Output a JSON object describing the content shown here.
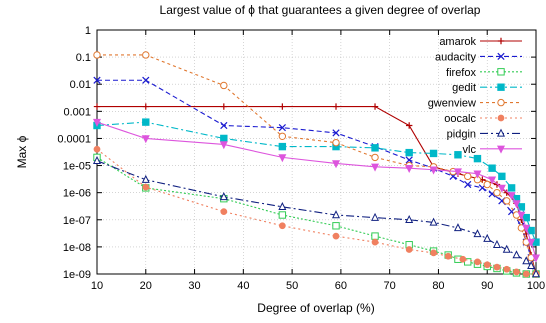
{
  "chart_data": {
    "type": "line",
    "title": "Largest value of ϕ that guarantees a given degree of overlap",
    "xlabel": "Degree of overlap (%)",
    "ylabel": "Max ϕ",
    "xlim": [
      10,
      100
    ],
    "ylim": [
      1e-09,
      1
    ],
    "y_scale": "log",
    "grid": true,
    "legend_position": "top-right",
    "x_ticks": [
      10,
      20,
      30,
      40,
      50,
      60,
      70,
      80,
      90,
      100
    ],
    "x_tick_labels": [
      "10",
      "20",
      "30",
      "40",
      "50",
      "60",
      "70",
      "80",
      "90",
      "100"
    ],
    "y_ticks": [
      1,
      0.1,
      0.01,
      0.001,
      0.0001,
      1e-05,
      1e-06,
      1e-07,
      1e-08,
      1e-09
    ],
    "y_tick_labels": [
      "1",
      "0.1",
      "0.01",
      "0.001",
      "0.0001",
      "1e-05",
      "1e-06",
      "1e-07",
      "1e-08",
      "1e-09"
    ],
    "series": [
      {
        "name": "amarok",
        "color": "#b00000",
        "marker": "plus",
        "dash": "",
        "points": [
          [
            10,
            0.0015
          ],
          [
            20,
            0.0015
          ],
          [
            36,
            0.0015
          ],
          [
            48,
            0.0015
          ],
          [
            59,
            0.0015
          ],
          [
            67,
            0.0015
          ],
          [
            74,
            0.0003
          ],
          [
            79,
            9e-06
          ],
          [
            84,
            5e-06
          ],
          [
            89,
            3e-06
          ],
          [
            92,
            2e-06
          ],
          [
            94,
            1e-06
          ],
          [
            96,
            4e-07
          ],
          [
            97,
            1e-07
          ],
          [
            98,
            3e-08
          ],
          [
            99,
            5e-09
          ],
          [
            100,
            1e-09
          ]
        ]
      },
      {
        "name": "audacity",
        "color": "#1a1ad0",
        "marker": "x",
        "dash": "5,3",
        "points": [
          [
            10,
            0.014
          ],
          [
            20,
            0.014
          ],
          [
            36,
            0.0003
          ],
          [
            48,
            0.00025
          ],
          [
            59,
            0.00016
          ],
          [
            67,
            5e-05
          ],
          [
            74,
            1.6e-05
          ],
          [
            79,
            8e-06
          ],
          [
            83,
            4e-06
          ],
          [
            86,
            2e-06
          ],
          [
            89,
            1.5e-06
          ],
          [
            91,
            9e-07
          ],
          [
            93,
            5e-07
          ],
          [
            95,
            2e-07
          ],
          [
            97,
            6e-08
          ],
          [
            98,
            1.5e-08
          ],
          [
            99,
            4e-09
          ],
          [
            100,
            1e-09
          ]
        ]
      },
      {
        "name": "firefox",
        "color": "#33cc55",
        "marker": "square-open",
        "dash": "2,2",
        "points": [
          [
            10,
            2e-05
          ],
          [
            20,
            1.5e-06
          ],
          [
            36,
            6e-07
          ],
          [
            48,
            1.5e-07
          ],
          [
            59,
            6e-08
          ],
          [
            67,
            2.5e-08
          ],
          [
            74,
            1.2e-08
          ],
          [
            79,
            7e-09
          ],
          [
            82,
            5e-09
          ],
          [
            84,
            3.5e-09
          ],
          [
            86,
            2.8e-09
          ],
          [
            88,
            2.3e-09
          ],
          [
            90,
            1.9e-09
          ],
          [
            92,
            1.6e-09
          ],
          [
            94,
            1.3e-09
          ],
          [
            96,
            1.1e-09
          ],
          [
            98,
            1e-09
          ],
          [
            100,
            1e-09
          ]
        ]
      },
      {
        "name": "gedit",
        "color": "#00b8c8",
        "marker": "square-filled",
        "dash": "7,3,2,3",
        "points": [
          [
            10,
            0.0003
          ],
          [
            20,
            0.0004
          ],
          [
            36,
            0.0001
          ],
          [
            48,
            5e-05
          ],
          [
            59,
            5e-05
          ],
          [
            67,
            4.5e-05
          ],
          [
            74,
            3e-05
          ],
          [
            79,
            2.8e-05
          ],
          [
            84,
            2.5e-05
          ],
          [
            88,
            1.8e-05
          ],
          [
            91,
            8e-06
          ],
          [
            93,
            4e-06
          ],
          [
            95,
            1.5e-06
          ],
          [
            96,
            6e-07
          ],
          [
            97,
            3e-07
          ],
          [
            98,
            1.2e-07
          ],
          [
            99,
            4e-08
          ],
          [
            100,
            1.5e-08
          ]
        ]
      },
      {
        "name": "gwenview",
        "color": "#e07830",
        "marker": "circle-open",
        "dash": "3,3",
        "points": [
          [
            10,
            0.12
          ],
          [
            20,
            0.12
          ],
          [
            36,
            0.009
          ],
          [
            48,
            0.00012
          ],
          [
            59,
            7e-05
          ],
          [
            67,
            2e-05
          ],
          [
            74,
            1e-05
          ],
          [
            79,
            9e-06
          ],
          [
            83,
            6e-06
          ],
          [
            86,
            4e-06
          ],
          [
            88,
            3e-06
          ],
          [
            90,
            2e-06
          ],
          [
            92,
            1e-06
          ],
          [
            94,
            5e-07
          ],
          [
            96,
            1.5e-07
          ],
          [
            97,
            5e-08
          ],
          [
            98,
            1.5e-08
          ],
          [
            99,
            4e-09
          ],
          [
            100,
            1e-09
          ]
        ]
      },
      {
        "name": "oocalc",
        "color": "#f08060",
        "marker": "circle-filled",
        "dash": "2,3",
        "points": [
          [
            10,
            4e-05
          ],
          [
            20,
            1.6e-06
          ],
          [
            36,
            2e-07
          ],
          [
            48,
            6e-08
          ],
          [
            59,
            2.5e-08
          ],
          [
            67,
            1.5e-08
          ],
          [
            74,
            8e-09
          ],
          [
            79,
            6e-09
          ],
          [
            82,
            4.5e-09
          ],
          [
            85,
            3.5e-09
          ],
          [
            88,
            2.8e-09
          ],
          [
            90,
            2.2e-09
          ],
          [
            92,
            1.8e-09
          ],
          [
            94,
            1.5e-09
          ],
          [
            96,
            1.2e-09
          ],
          [
            98,
            1e-09
          ],
          [
            100,
            1e-09
          ]
        ]
      },
      {
        "name": "pidgin",
        "color": "#102080",
        "marker": "triangle-up",
        "dash": "8,3,2,3",
        "points": [
          [
            10,
            1.5e-05
          ],
          [
            20,
            3e-06
          ],
          [
            36,
            7e-07
          ],
          [
            48,
            3e-07
          ],
          [
            59,
            1.5e-07
          ],
          [
            67,
            1.2e-07
          ],
          [
            74,
            1e-07
          ],
          [
            79,
            8e-08
          ],
          [
            84,
            5e-08
          ],
          [
            88,
            3e-08
          ],
          [
            90,
            2e-08
          ],
          [
            92,
            1.2e-08
          ],
          [
            94,
            8e-09
          ],
          [
            96,
            5e-09
          ],
          [
            98,
            3e-09
          ],
          [
            99,
            2e-09
          ],
          [
            100,
            1e-09
          ]
        ]
      },
      {
        "name": "vlc",
        "color": "#dd55dd",
        "marker": "triangle-down",
        "dash": "",
        "points": [
          [
            10,
            0.0004
          ],
          [
            20,
            0.0001
          ],
          [
            36,
            6e-05
          ],
          [
            48,
            2e-05
          ],
          [
            59,
            1.2e-05
          ],
          [
            67,
            9e-06
          ],
          [
            74,
            8e-06
          ],
          [
            79,
            7e-06
          ],
          [
            84,
            6e-06
          ],
          [
            88,
            5e-06
          ],
          [
            91,
            3e-06
          ],
          [
            93,
            1.5e-06
          ],
          [
            95,
            8e-07
          ],
          [
            96,
            4e-07
          ],
          [
            97,
            1.5e-07
          ],
          [
            98,
            5e-08
          ],
          [
            99,
            1.5e-08
          ],
          [
            100,
            4e-09
          ]
        ]
      }
    ]
  }
}
